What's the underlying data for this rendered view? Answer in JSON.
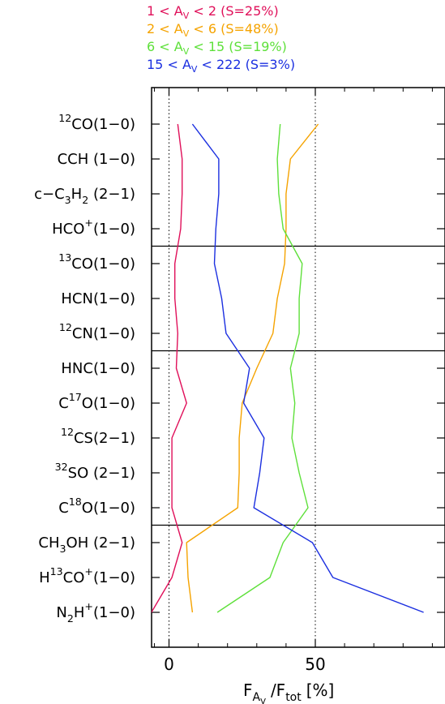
{
  "chart_data": {
    "type": "line",
    "orientation": "horizontal",
    "xlabel": "F_Av / F_tot [%]",
    "xlabel_parts": {
      "f": "F",
      "a": "A",
      "v": "V",
      "slash": "/F",
      "tot": "tot",
      "unit": "[%]"
    },
    "xlim": [
      -6,
      95
    ],
    "x_ticks": [
      0,
      50
    ],
    "x_tick_labels": [
      "0",
      "50"
    ],
    "x_minor_ticks": [
      -5,
      10,
      20,
      30,
      40,
      60,
      70,
      80,
      90
    ],
    "categories": [
      {
        "base": "CO(1−0)",
        "pre": "12"
      },
      {
        "base": "CCH (1−0)"
      },
      {
        "base": "c−C3H2 (2−1)",
        "segs": [
          [
            "c−C",
            ""
          ],
          [
            "3",
            "sub"
          ],
          [
            "H",
            ""
          ],
          [
            "2",
            "sub"
          ],
          [
            " (2−1)",
            ""
          ]
        ]
      },
      {
        "base": "HCO+(1−0)",
        "segs": [
          [
            "HCO",
            ""
          ],
          [
            "+",
            "sup"
          ],
          [
            "(1−0)",
            ""
          ]
        ]
      },
      {
        "base": "CO(1−0)",
        "pre": "13"
      },
      {
        "base": "HCN(1−0)"
      },
      {
        "base": "CN(1−0)",
        "pre": "12"
      },
      {
        "base": "HNC(1−0)"
      },
      {
        "base": "C17O(1−0)",
        "segs": [
          [
            "C",
            ""
          ],
          [
            "17",
            "sup"
          ],
          [
            "O(1−0)",
            ""
          ]
        ]
      },
      {
        "base": "CS(2−1)",
        "pre": "12"
      },
      {
        "base": "SO (2−1)",
        "pre": "32"
      },
      {
        "base": "C18O(1−0)",
        "segs": [
          [
            "C",
            ""
          ],
          [
            "18",
            "sup"
          ],
          [
            "O(1−0)",
            ""
          ]
        ]
      },
      {
        "base": "CH3OH (2−1)",
        "segs": [
          [
            "CH",
            ""
          ],
          [
            "3",
            "sub"
          ],
          [
            "OH (2−1)",
            ""
          ]
        ]
      },
      {
        "base": "H13CO+(1−0)",
        "segs": [
          [
            "H",
            ""
          ],
          [
            "13",
            "sup"
          ],
          [
            "CO",
            ""
          ],
          [
            "+",
            "sup"
          ],
          [
            "(1−0)",
            ""
          ]
        ]
      },
      {
        "base": "N2H+(1−0)",
        "segs": [
          [
            "N",
            ""
          ],
          [
            "2",
            "sub"
          ],
          [
            "H",
            ""
          ],
          [
            "+",
            "sup"
          ],
          [
            "(1−0)",
            ""
          ]
        ]
      }
    ],
    "separators_after": [
      3,
      6,
      11
    ],
    "series": [
      {
        "name": "1 < AV < 2 (S=25%)",
        "lo": "1",
        "hi": "2",
        "s": "(S=25%)",
        "color": "#e0105a",
        "values": [
          3,
          4.5,
          4.5,
          4,
          2,
          2,
          3,
          2.5,
          6,
          1,
          1,
          1,
          4.5,
          1,
          -6
        ]
      },
      {
        "name": "2 < AV < 6 (S=48%)",
        "lo": "2",
        "hi": "6",
        "s": "(S=48%)",
        "color": "#f5a300",
        "values": [
          51,
          41.5,
          40,
          40,
          39.5,
          37,
          35.5,
          30,
          25,
          24,
          24,
          23.5,
          6,
          6.5,
          8
        ]
      },
      {
        "name": "6 < AV < 15 (S=19%)",
        "lo": "6",
        "hi": "15",
        "s": "(S=19%)",
        "color": "#5ee03a",
        "values": [
          38,
          37,
          37.5,
          39,
          45.5,
          44.5,
          44.5,
          41.5,
          43,
          42,
          44.5,
          47.5,
          39,
          34.5,
          16.5
        ]
      },
      {
        "name": "15 < AV < 222 (S=3%)",
        "lo": "15",
        "hi": "222",
        "s": "(S=3%)",
        "color": "#1b2fe0",
        "values": [
          8,
          17,
          17,
          16,
          15.5,
          18,
          19.5,
          27.5,
          25.5,
          32.5,
          31,
          29,
          49,
          56,
          87
        ]
      }
    ]
  }
}
